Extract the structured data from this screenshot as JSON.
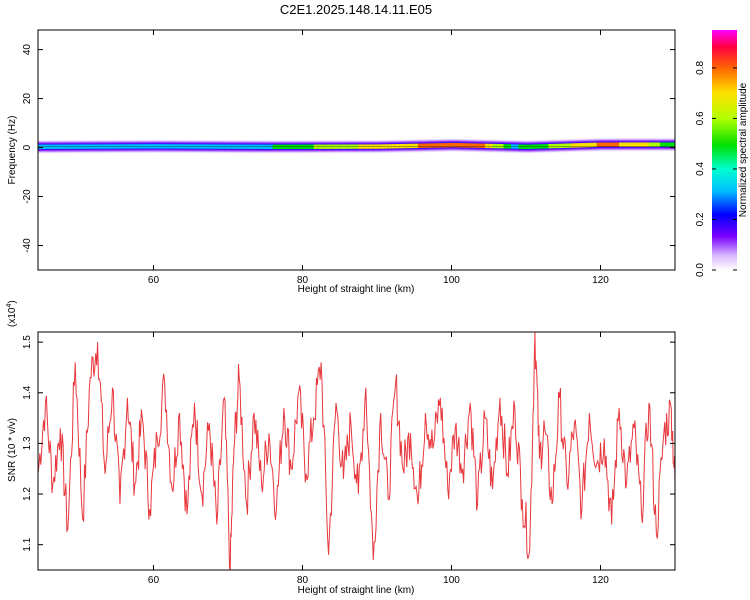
{
  "title": "C2E1.2025.148.14.11.E05",
  "chart_data": [
    {
      "type": "heatmap",
      "xlabel": "Height of straight line (km)",
      "ylabel": "Frequency (Hz)",
      "xlim": [
        44.5,
        130
      ],
      "ylim": [
        -50,
        48
      ],
      "xticks": [
        60,
        80,
        100,
        120
      ],
      "yticks": [
        40,
        20,
        0,
        -20,
        -40
      ],
      "band": {
        "center_hz": [
          [
            44.5,
            0.3
          ],
          [
            60,
            0.5
          ],
          [
            75,
            0.3
          ],
          [
            90,
            0.4
          ],
          [
            100,
            1.0
          ],
          [
            110,
            0.3
          ],
          [
            120,
            1.2
          ],
          [
            130,
            1.2
          ]
        ],
        "half_width_hz": 3,
        "peak_amplitude": [
          [
            44.5,
            0.45
          ],
          [
            60,
            0.5
          ],
          [
            75,
            0.5
          ],
          [
            85,
            0.7
          ],
          [
            93,
            0.8
          ],
          [
            100,
            0.9
          ],
          [
            104,
            0.85
          ],
          [
            108,
            0.5
          ],
          [
            115,
            0.7
          ],
          [
            120,
            0.85
          ],
          [
            125,
            0.8
          ],
          [
            130,
            0.5
          ]
        ]
      },
      "colorbar": {
        "label": "Normalized spectral amplitude",
        "range": [
          0,
          0.95
        ],
        "ticks": [
          "0.0",
          "0.2",
          "0.4",
          "0.6",
          "0.8"
        ]
      },
      "grid": false
    },
    {
      "type": "line",
      "xlabel": "Height of straight line (km)",
      "ylabel": "SNR (10 * v/v)",
      "scale_label_base": "(x10",
      "scale_label_exp": "4",
      "scale_label_end": ")",
      "xlim": [
        44.5,
        130
      ],
      "ylim": [
        1.05,
        1.52
      ],
      "xticks": [
        60,
        80,
        100,
        120
      ],
      "yticks": [
        "1.1",
        "1.2",
        "1.3",
        "1.4",
        "1.5"
      ],
      "series": [
        {
          "color": "#e8383d",
          "x": [
            44.5,
            45.5,
            46.5,
            47.5,
            48.5,
            49.5,
            50.5,
            51.5,
            52.5,
            53.5,
            54.5,
            55.5,
            56.5,
            57.5,
            58.5,
            59.5,
            60.5,
            61.5,
            62.5,
            63.5,
            64.5,
            65.5,
            66.5,
            67.5,
            68.5,
            69.5,
            70.3,
            70.8,
            71.5,
            72.5,
            73.5,
            74.5,
            75.5,
            76.5,
            77.5,
            78.5,
            79.5,
            80.5,
            81.5,
            82.5,
            83.5,
            84.5,
            85.5,
            86.5,
            87.5,
            88.5,
            89.5,
            90.5,
            91.5,
            92.5,
            93.5,
            94.5,
            95.5,
            96.5,
            97.5,
            98.5,
            99.5,
            100.5,
            101.5,
            102.5,
            103.5,
            104.5,
            105.5,
            106.5,
            107.5,
            108.5,
            109.5,
            110.5,
            111.2,
            111.8,
            112.5,
            113.5,
            114.5,
            115.5,
            116.5,
            117.5,
            118.5,
            119.5,
            120.5,
            121.5,
            122.5,
            123.5,
            124.5,
            125.5,
            126.5,
            127.5,
            128.5,
            129.5,
            130
          ],
          "y": [
            1.24,
            1.38,
            1.22,
            1.33,
            1.13,
            1.46,
            1.15,
            1.43,
            1.5,
            1.24,
            1.41,
            1.18,
            1.39,
            1.22,
            1.35,
            1.17,
            1.31,
            1.42,
            1.21,
            1.36,
            1.16,
            1.38,
            1.2,
            1.34,
            1.14,
            1.39,
            1.05,
            1.29,
            1.43,
            1.18,
            1.36,
            1.22,
            1.32,
            1.17,
            1.37,
            1.25,
            1.4,
            1.24,
            1.35,
            1.46,
            1.08,
            1.38,
            1.23,
            1.34,
            1.2,
            1.41,
            1.07,
            1.36,
            1.19,
            1.42,
            1.25,
            1.32,
            1.18,
            1.36,
            1.29,
            1.39,
            1.21,
            1.33,
            1.25,
            1.38,
            1.18,
            1.35,
            1.21,
            1.39,
            1.24,
            1.37,
            1.19,
            1.09,
            1.52,
            1.27,
            1.33,
            1.18,
            1.39,
            1.22,
            1.34,
            1.17,
            1.36,
            1.26,
            1.31,
            1.14,
            1.37,
            1.22,
            1.33,
            1.16,
            1.38,
            1.12,
            1.32,
            1.37,
            1.22
          ]
        }
      ],
      "grid": false
    }
  ]
}
